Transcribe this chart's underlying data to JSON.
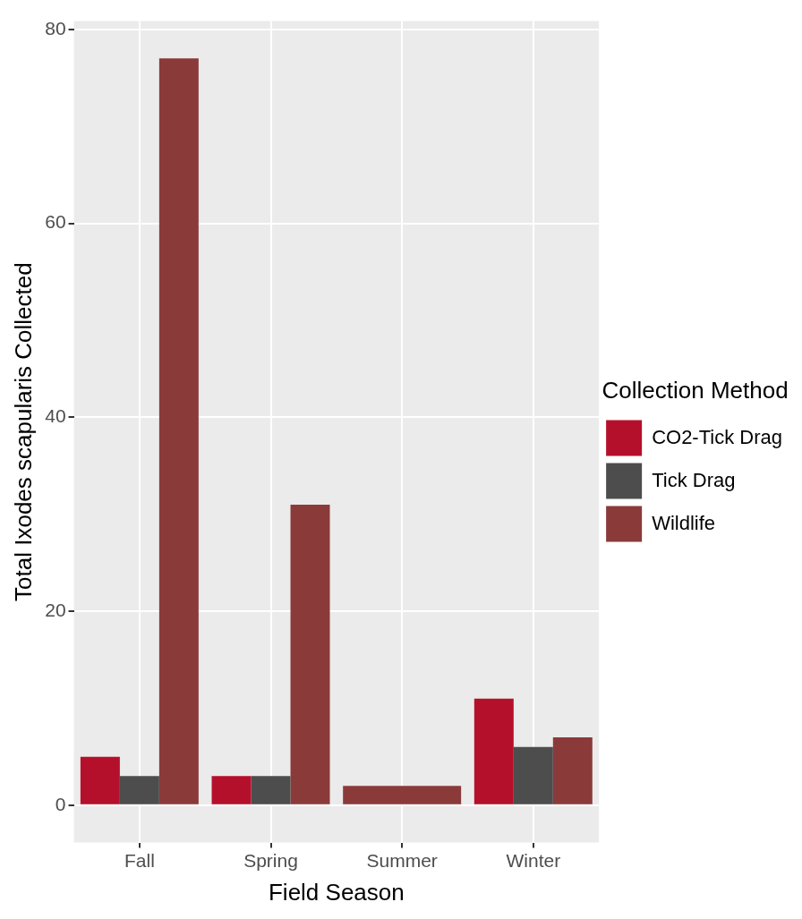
{
  "chart_data": {
    "type": "bar",
    "xlabel": "Field Season",
    "ylabel": "Total Ixodes scapularis Collected",
    "legend_title": "Collection Method",
    "categories": [
      "Fall",
      "Spring",
      "Summer",
      "Winter"
    ],
    "series": [
      {
        "name": "CO2-Tick Drag",
        "color": "#b5102b",
        "values": [
          5,
          3,
          null,
          11
        ]
      },
      {
        "name": "Tick Drag",
        "color": "#4d4d4d",
        "values": [
          3,
          3,
          null,
          6
        ]
      },
      {
        "name": "Wildlife",
        "color": "#8b3a3a",
        "values": [
          77,
          31,
          2,
          7
        ]
      }
    ],
    "ylim": [
      -3.85,
      80.85
    ],
    "yticks": [
      0,
      20,
      40,
      60,
      80
    ],
    "grid": true,
    "legend": "right"
  }
}
